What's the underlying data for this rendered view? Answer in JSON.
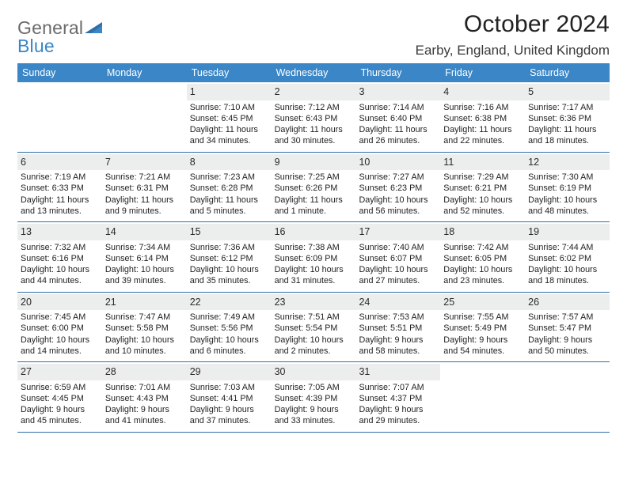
{
  "logo": {
    "word1": "General",
    "word2": "Blue"
  },
  "title": "October 2024",
  "location": "Earby, England, United Kingdom",
  "colors": {
    "header_bg": "#3b86c6",
    "row_divider": "#2f6fa8",
    "daynum_bg": "#eceded",
    "logo_gray": "#6a6a6a",
    "logo_blue": "#3b86c6"
  },
  "weekdays": [
    "Sunday",
    "Monday",
    "Tuesday",
    "Wednesday",
    "Thursday",
    "Friday",
    "Saturday"
  ],
  "weeks": [
    [
      null,
      null,
      {
        "n": "1",
        "sr": "Sunrise: 7:10 AM",
        "ss": "Sunset: 6:45 PM",
        "dl": "Daylight: 11 hours and 34 minutes."
      },
      {
        "n": "2",
        "sr": "Sunrise: 7:12 AM",
        "ss": "Sunset: 6:43 PM",
        "dl": "Daylight: 11 hours and 30 minutes."
      },
      {
        "n": "3",
        "sr": "Sunrise: 7:14 AM",
        "ss": "Sunset: 6:40 PM",
        "dl": "Daylight: 11 hours and 26 minutes."
      },
      {
        "n": "4",
        "sr": "Sunrise: 7:16 AM",
        "ss": "Sunset: 6:38 PM",
        "dl": "Daylight: 11 hours and 22 minutes."
      },
      {
        "n": "5",
        "sr": "Sunrise: 7:17 AM",
        "ss": "Sunset: 6:36 PM",
        "dl": "Daylight: 11 hours and 18 minutes."
      }
    ],
    [
      {
        "n": "6",
        "sr": "Sunrise: 7:19 AM",
        "ss": "Sunset: 6:33 PM",
        "dl": "Daylight: 11 hours and 13 minutes."
      },
      {
        "n": "7",
        "sr": "Sunrise: 7:21 AM",
        "ss": "Sunset: 6:31 PM",
        "dl": "Daylight: 11 hours and 9 minutes."
      },
      {
        "n": "8",
        "sr": "Sunrise: 7:23 AM",
        "ss": "Sunset: 6:28 PM",
        "dl": "Daylight: 11 hours and 5 minutes."
      },
      {
        "n": "9",
        "sr": "Sunrise: 7:25 AM",
        "ss": "Sunset: 6:26 PM",
        "dl": "Daylight: 11 hours and 1 minute."
      },
      {
        "n": "10",
        "sr": "Sunrise: 7:27 AM",
        "ss": "Sunset: 6:23 PM",
        "dl": "Daylight: 10 hours and 56 minutes."
      },
      {
        "n": "11",
        "sr": "Sunrise: 7:29 AM",
        "ss": "Sunset: 6:21 PM",
        "dl": "Daylight: 10 hours and 52 minutes."
      },
      {
        "n": "12",
        "sr": "Sunrise: 7:30 AM",
        "ss": "Sunset: 6:19 PM",
        "dl": "Daylight: 10 hours and 48 minutes."
      }
    ],
    [
      {
        "n": "13",
        "sr": "Sunrise: 7:32 AM",
        "ss": "Sunset: 6:16 PM",
        "dl": "Daylight: 10 hours and 44 minutes."
      },
      {
        "n": "14",
        "sr": "Sunrise: 7:34 AM",
        "ss": "Sunset: 6:14 PM",
        "dl": "Daylight: 10 hours and 39 minutes."
      },
      {
        "n": "15",
        "sr": "Sunrise: 7:36 AM",
        "ss": "Sunset: 6:12 PM",
        "dl": "Daylight: 10 hours and 35 minutes."
      },
      {
        "n": "16",
        "sr": "Sunrise: 7:38 AM",
        "ss": "Sunset: 6:09 PM",
        "dl": "Daylight: 10 hours and 31 minutes."
      },
      {
        "n": "17",
        "sr": "Sunrise: 7:40 AM",
        "ss": "Sunset: 6:07 PM",
        "dl": "Daylight: 10 hours and 27 minutes."
      },
      {
        "n": "18",
        "sr": "Sunrise: 7:42 AM",
        "ss": "Sunset: 6:05 PM",
        "dl": "Daylight: 10 hours and 23 minutes."
      },
      {
        "n": "19",
        "sr": "Sunrise: 7:44 AM",
        "ss": "Sunset: 6:02 PM",
        "dl": "Daylight: 10 hours and 18 minutes."
      }
    ],
    [
      {
        "n": "20",
        "sr": "Sunrise: 7:45 AM",
        "ss": "Sunset: 6:00 PM",
        "dl": "Daylight: 10 hours and 14 minutes."
      },
      {
        "n": "21",
        "sr": "Sunrise: 7:47 AM",
        "ss": "Sunset: 5:58 PM",
        "dl": "Daylight: 10 hours and 10 minutes."
      },
      {
        "n": "22",
        "sr": "Sunrise: 7:49 AM",
        "ss": "Sunset: 5:56 PM",
        "dl": "Daylight: 10 hours and 6 minutes."
      },
      {
        "n": "23",
        "sr": "Sunrise: 7:51 AM",
        "ss": "Sunset: 5:54 PM",
        "dl": "Daylight: 10 hours and 2 minutes."
      },
      {
        "n": "24",
        "sr": "Sunrise: 7:53 AM",
        "ss": "Sunset: 5:51 PM",
        "dl": "Daylight: 9 hours and 58 minutes."
      },
      {
        "n": "25",
        "sr": "Sunrise: 7:55 AM",
        "ss": "Sunset: 5:49 PM",
        "dl": "Daylight: 9 hours and 54 minutes."
      },
      {
        "n": "26",
        "sr": "Sunrise: 7:57 AM",
        "ss": "Sunset: 5:47 PM",
        "dl": "Daylight: 9 hours and 50 minutes."
      }
    ],
    [
      {
        "n": "27",
        "sr": "Sunrise: 6:59 AM",
        "ss": "Sunset: 4:45 PM",
        "dl": "Daylight: 9 hours and 45 minutes."
      },
      {
        "n": "28",
        "sr": "Sunrise: 7:01 AM",
        "ss": "Sunset: 4:43 PM",
        "dl": "Daylight: 9 hours and 41 minutes."
      },
      {
        "n": "29",
        "sr": "Sunrise: 7:03 AM",
        "ss": "Sunset: 4:41 PM",
        "dl": "Daylight: 9 hours and 37 minutes."
      },
      {
        "n": "30",
        "sr": "Sunrise: 7:05 AM",
        "ss": "Sunset: 4:39 PM",
        "dl": "Daylight: 9 hours and 33 minutes."
      },
      {
        "n": "31",
        "sr": "Sunrise: 7:07 AM",
        "ss": "Sunset: 4:37 PM",
        "dl": "Daylight: 9 hours and 29 minutes."
      },
      null,
      null
    ]
  ]
}
